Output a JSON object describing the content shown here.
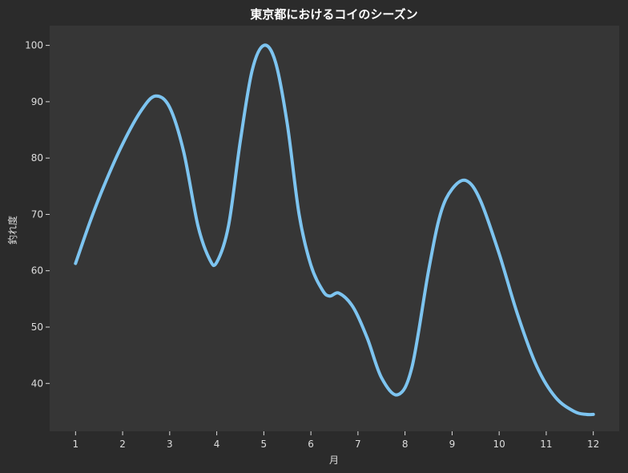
{
  "chart_data": {
    "type": "line",
    "title": "東京都におけるコイのシーズン",
    "xlabel": "月",
    "ylabel": "釣れ度",
    "x": [
      1,
      2,
      3,
      4,
      5,
      6,
      7,
      8,
      9,
      10,
      11,
      12
    ],
    "x_ticks": [
      "1",
      "2",
      "3",
      "4",
      "5",
      "6",
      "7",
      "8",
      "9",
      "10",
      "11",
      "12"
    ],
    "xlim": [
      0.45,
      12.55
    ],
    "ylim": [
      31.5,
      103.5
    ],
    "y_ticks": [
      40,
      50,
      60,
      70,
      80,
      90,
      100
    ],
    "series": [
      {
        "points": [
          [
            1.0,
            61.3
          ],
          [
            1.3,
            68.5
          ],
          [
            1.6,
            75.0
          ],
          [
            2.0,
            82.5
          ],
          [
            2.4,
            88.5
          ],
          [
            2.7,
            91.0
          ],
          [
            3.0,
            89.0
          ],
          [
            3.3,
            81.0
          ],
          [
            3.6,
            68.0
          ],
          [
            3.85,
            62.0
          ],
          [
            4.0,
            61.5
          ],
          [
            4.25,
            68.0
          ],
          [
            4.5,
            83.0
          ],
          [
            4.75,
            95.5
          ],
          [
            5.0,
            100.0
          ],
          [
            5.25,
            97.0
          ],
          [
            5.5,
            86.0
          ],
          [
            5.75,
            70.0
          ],
          [
            6.0,
            61.0
          ],
          [
            6.25,
            56.5
          ],
          [
            6.4,
            55.5
          ],
          [
            6.6,
            56.0
          ],
          [
            6.9,
            53.5
          ],
          [
            7.2,
            48.0
          ],
          [
            7.5,
            41.0
          ],
          [
            7.85,
            38.0
          ],
          [
            8.15,
            43.0
          ],
          [
            8.5,
            60.0
          ],
          [
            8.75,
            70.0
          ],
          [
            9.0,
            74.5
          ],
          [
            9.3,
            76.0
          ],
          [
            9.6,
            72.5
          ],
          [
            10.0,
            63.0
          ],
          [
            10.4,
            52.0
          ],
          [
            10.8,
            43.0
          ],
          [
            11.2,
            37.5
          ],
          [
            11.6,
            35.0
          ],
          [
            11.85,
            34.5
          ],
          [
            12.0,
            34.5
          ]
        ]
      }
    ],
    "colors": {
      "line": "#7dc4f0",
      "plot_background": "#363636",
      "figure_background": "#2b2b2b",
      "text": "#dddddd",
      "title": "#ffffff"
    },
    "grid": false
  }
}
